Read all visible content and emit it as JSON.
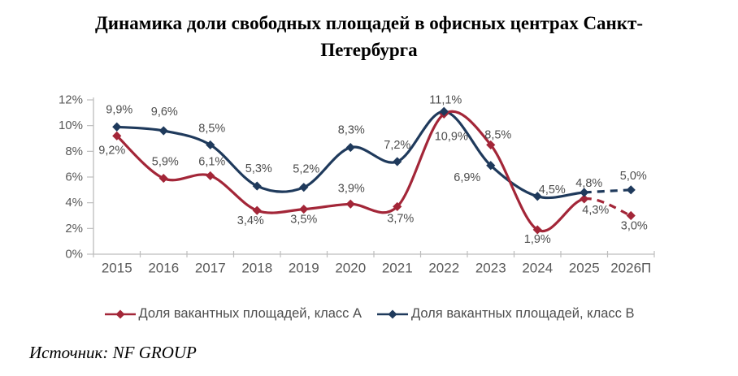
{
  "page": {
    "title_lines": [
      "Динамика доли свободных площадей в офисных центрах Санкт-",
      "Петербурга"
    ],
    "source": "Источник: NF GROUP"
  },
  "chart_data": {
    "type": "line",
    "title": "Динамика доли свободных площадей в офисных центрах Санкт-Петербурга",
    "categories": [
      "2015",
      "2016",
      "2017",
      "2018",
      "2019",
      "2020",
      "2021",
      "2022",
      "2023",
      "2024",
      "2025",
      "2026П"
    ],
    "y_tick_values": [
      0,
      2,
      4,
      6,
      8,
      10,
      12
    ],
    "y_tick_labels": [
      "0%",
      "2%",
      "4%",
      "6%",
      "8%",
      "10%",
      "12%"
    ],
    "ylim": [
      0,
      12
    ],
    "grid": false,
    "legend_position": "bottom",
    "forecast_from_index": 10,
    "colors": {
      "axis": "#BDBDBD",
      "axis_label": "#595959",
      "data_label": "#4D4D4D"
    },
    "series": [
      {
        "name": "Доля вакантных площадей, класс А",
        "color": "#A32638",
        "values": [
          9.2,
          5.9,
          6.1,
          3.4,
          3.5,
          3.9,
          3.7,
          10.9,
          8.5,
          1.9,
          4.3,
          3.0
        ],
        "labels": [
          "9,2%",
          "5,9%",
          "6,1%",
          "3,4%",
          "3,5%",
          "3,9%",
          "3,7%",
          "10,9%",
          "8,5%",
          "1,9%",
          "4,3%",
          "3,0%"
        ],
        "label_offsets": [
          [
            -6,
            18
          ],
          [
            2,
            -20
          ],
          [
            2,
            -17
          ],
          [
            -8,
            13
          ],
          [
            0,
            13
          ],
          [
            1,
            -19
          ],
          [
            4,
            15
          ],
          [
            9,
            28
          ],
          [
            9,
            -12
          ],
          [
            0,
            12
          ],
          [
            14,
            14
          ],
          [
            4,
            13
          ]
        ]
      },
      {
        "name": "Доля вакантных площадей, класс В",
        "color": "#1F3A5C",
        "values": [
          9.9,
          9.6,
          8.5,
          5.3,
          5.2,
          8.3,
          7.2,
          11.1,
          6.9,
          4.5,
          4.8,
          5.0
        ],
        "labels": [
          "9,9%",
          "9,6%",
          "8,5%",
          "5,3%",
          "5,2%",
          "8,3%",
          "7,2%",
          "11,1%",
          "6,9%",
          "4,5%",
          "4,8%",
          "5,0%"
        ],
        "label_offsets": [
          [
            3,
            -21
          ],
          [
            1,
            -23
          ],
          [
            2,
            -20
          ],
          [
            2,
            -21
          ],
          [
            3,
            -22
          ],
          [
            1,
            -21
          ],
          [
            0,
            -20
          ],
          [
            2,
            -14
          ],
          [
            -29,
            15
          ],
          [
            18,
            -8
          ],
          [
            6,
            -11
          ],
          [
            3,
            -17
          ]
        ]
      }
    ]
  }
}
